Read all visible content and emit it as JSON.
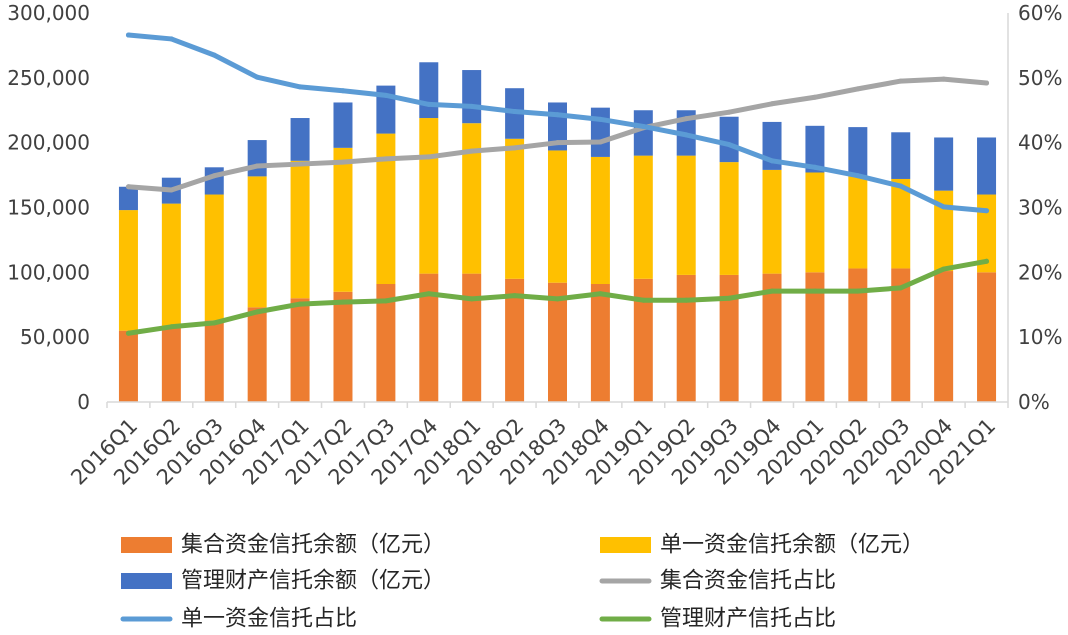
{
  "chart_data": {
    "type": "bar",
    "stacked": true,
    "title": "",
    "xlabel": "",
    "ylabel": "",
    "y2label": "",
    "grid": false,
    "categories": [
      "2016Q1",
      "2016Q2",
      "2016Q3",
      "2016Q4",
      "2017Q1",
      "2017Q2",
      "2017Q3",
      "2017Q4",
      "2018Q1",
      "2018Q2",
      "2018Q3",
      "2018Q4",
      "2019Q1",
      "2019Q2",
      "2019Q3",
      "2019Q4",
      "2020Q1",
      "2020Q2",
      "2020Q3",
      "2020Q4",
      "2021Q1"
    ],
    "ylim": [
      0,
      300000
    ],
    "yticks": [
      0,
      50000,
      100000,
      150000,
      200000,
      250000,
      300000
    ],
    "ytick_labels": [
      "0",
      "50,000",
      "100,000",
      "150,000",
      "200,000",
      "250,000",
      "300,000"
    ],
    "y2lim": [
      0,
      60
    ],
    "y2ticks": [
      0,
      10,
      20,
      30,
      40,
      50,
      60
    ],
    "y2tick_labels": [
      "0%",
      "10%",
      "20%",
      "30%",
      "40%",
      "50%",
      "60%"
    ],
    "series": [
      {
        "name": "集合资金信托余额（亿元）",
        "type": "bar",
        "secondary_axis": false,
        "color": "#ED7D31",
        "values": [
          55000,
          57000,
          63000,
          73000,
          80000,
          85000,
          91000,
          99000,
          99000,
          95000,
          92000,
          91000,
          95000,
          98000,
          98000,
          99000,
          100000,
          103000,
          103000,
          101000,
          100000
        ]
      },
      {
        "name": "单一资金信托余额（亿元）",
        "type": "bar",
        "secondary_axis": false,
        "color": "#FFC000",
        "values": [
          93000,
          96000,
          97000,
          101000,
          106000,
          111000,
          116000,
          120000,
          116000,
          108000,
          102000,
          98000,
          95000,
          92000,
          87000,
          80000,
          77000,
          71000,
          69000,
          62000,
          60000
        ]
      },
      {
        "name": "管理财产信托余额（亿元）",
        "type": "bar",
        "secondary_axis": false,
        "color": "#4472C4",
        "values": [
          18000,
          20000,
          21000,
          28000,
          33000,
          35000,
          37000,
          43000,
          41000,
          39000,
          37000,
          38000,
          35000,
          35000,
          35000,
          37000,
          36000,
          38000,
          36000,
          41000,
          44000
        ]
      },
      {
        "name": "集合资金信托占比",
        "type": "line",
        "secondary_axis": true,
        "color": "#A5A5A5",
        "values": [
          33.2,
          32.7,
          34.9,
          36.4,
          36.7,
          37.0,
          37.5,
          37.8,
          38.7,
          39.2,
          40.0,
          40.1,
          42.3,
          43.7,
          44.7,
          46.0,
          47.0,
          48.3,
          49.5,
          49.8,
          49.2
        ]
      },
      {
        "name": "单一资金信托占比",
        "type": "line",
        "secondary_axis": true,
        "color": "#5B9BD5",
        "values": [
          56.6,
          56.0,
          53.5,
          50.1,
          48.6,
          48.0,
          47.3,
          45.9,
          45.6,
          44.8,
          44.3,
          43.6,
          42.5,
          41.2,
          39.7,
          37.2,
          36.2,
          34.9,
          33.3,
          30.1,
          29.5
        ]
      },
      {
        "name": "管理财产信托占比",
        "type": "line",
        "secondary_axis": true,
        "color": "#70AD47",
        "values": [
          10.6,
          11.6,
          12.2,
          13.9,
          15.1,
          15.4,
          15.6,
          16.7,
          15.9,
          16.4,
          15.9,
          16.7,
          15.7,
          15.7,
          16.0,
          17.1,
          17.1,
          17.1,
          17.6,
          20.5,
          21.7
        ]
      }
    ]
  }
}
